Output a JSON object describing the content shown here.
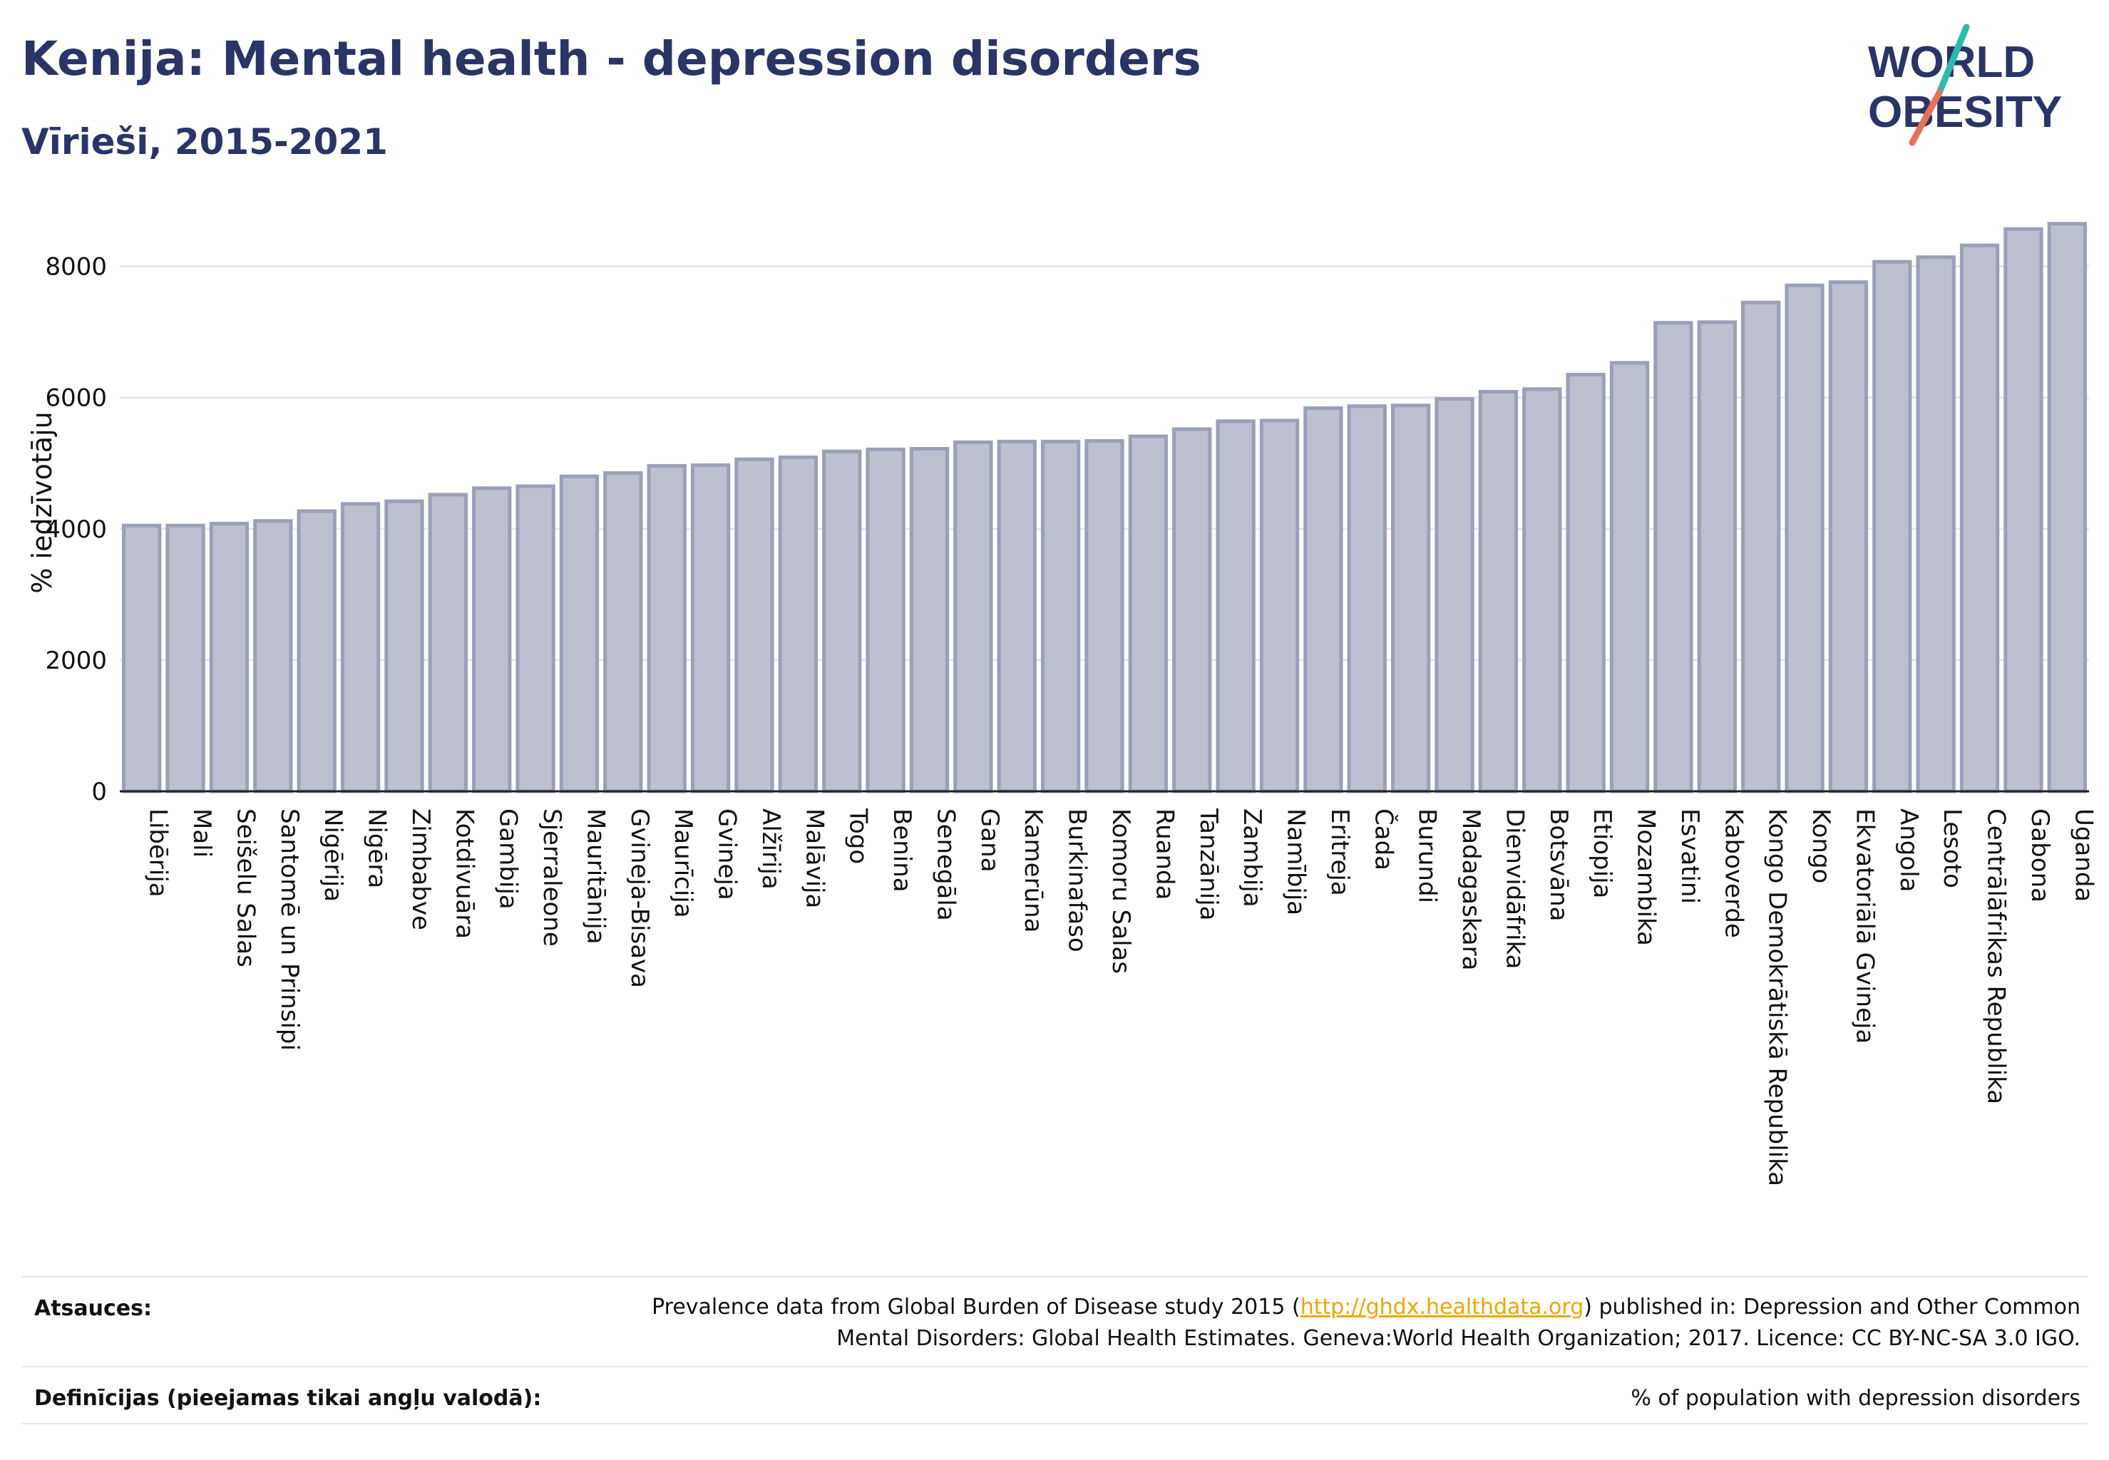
{
  "title": "Kenija: Mental health - depression disorders",
  "subtitle": "Vīrieši, 2015-2021",
  "logo": {
    "line1": "WORLD",
    "line2": "OBESITY"
  },
  "chart_data": {
    "type": "bar",
    "ylabel": "% iedzīvotāju",
    "xlabel": "",
    "ylim": [
      0,
      8800
    ],
    "yticks": [
      0,
      2000,
      4000,
      6000,
      8000
    ],
    "grid": true,
    "bar_color": "#bcc0cf",
    "bar_edge_color": "#9aa0b8",
    "categories": [
      "Libērija",
      "Mali",
      "Seišelu Salas",
      "Santomē un Prinsipi",
      "Nigērija",
      "Nigēra",
      "Zimbabve",
      "Kotdivuāra",
      "Gambija",
      "Sjerraleone",
      "Mauritānija",
      "Gvineja-Bisava",
      "Maurīcija",
      "Gvineja",
      "Alžīrija",
      "Malāvija",
      "Togo",
      "Benina",
      "Senegāla",
      "Gana",
      "Kamerūna",
      "Burkinafaso",
      "Komoru Salas",
      "Ruanda",
      "Tanzānija",
      "Zambija",
      "Namībija",
      "Eritreja",
      "Čada",
      "Burundi",
      "Madagaskara",
      "Dienvidāfrika",
      "Botsvāna",
      "Etiopija",
      "Mozambika",
      "Esvatini",
      "Kaboverde",
      "Kongo Demokrātiskā Republika",
      "Kongo",
      "Ekvatoriālā Gvineja",
      "Angola",
      "Lesoto",
      "Centrālāfrikas Republika",
      "Gabona",
      "Uganda"
    ],
    "values": [
      4050,
      4050,
      4080,
      4120,
      4270,
      4380,
      4420,
      4520,
      4620,
      4650,
      4800,
      4850,
      4960,
      4970,
      5060,
      5090,
      5180,
      5210,
      5220,
      5320,
      5330,
      5330,
      5340,
      5410,
      5520,
      5640,
      5650,
      5840,
      5870,
      5880,
      5980,
      6090,
      6130,
      6350,
      6530,
      7140,
      7150,
      7450,
      7710,
      7760,
      8070,
      8140,
      8320,
      8570,
      8650
    ]
  },
  "footer": {
    "sources_label": "Atsauces:",
    "sources_pre": "Prevalence data from Global Burden of Disease study 2015 (",
    "sources_link": "http://ghdx.healthdata.org",
    "sources_post": ") published in: Depression and Other Common Mental Disorders: Global Health Estimates. Geneva:World Health Organization; 2017. Licence: CC BY-NC-SA 3.0 IGO.",
    "definitions_label": "Definīcijas (pieejamas tikai angļu valodā):",
    "definitions_text": "% of population with depression disorders"
  },
  "colors": {
    "title": "#2b3467",
    "link": "#f0a500",
    "logo_teal": "#2bbbb0",
    "logo_coral": "#e8705a"
  }
}
